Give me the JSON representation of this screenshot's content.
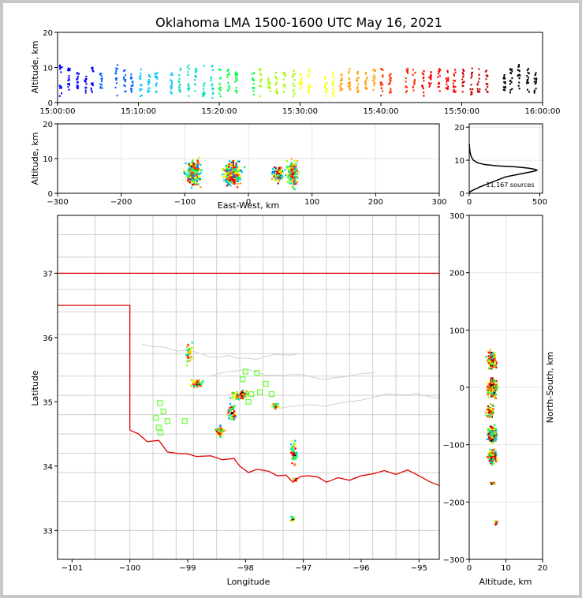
{
  "title": "Oklahoma LMA 1500-1600 UTC May 16, 2021",
  "chart_data": [
    {
      "id": "time_height",
      "type": "scatter",
      "ylabel": "Altitude, km",
      "xlim": [
        "15:00:00",
        "16:00:00"
      ],
      "ylim": [
        0,
        20
      ],
      "xticks": [
        "15:00:00",
        "15:10:00",
        "15:20:00",
        "15:30:00",
        "15:40:00",
        "15:50:00",
        "16:00:00"
      ],
      "yticks": [
        0,
        10,
        20
      ],
      "grid": false,
      "series": [
        {
          "values": [
            {
              "t": 0.3,
              "lo": 2,
              "hi": 11
            },
            {
              "t": 1.3,
              "lo": 3,
              "hi": 10
            },
            {
              "t": 2.4,
              "lo": 4,
              "hi": 9
            },
            {
              "t": 3.4,
              "lo": 3,
              "hi": 8
            },
            {
              "t": 4.2,
              "lo": 3,
              "hi": 11
            },
            {
              "t": 5.3,
              "lo": 4,
              "hi": 9
            },
            {
              "t": 7.2,
              "lo": 2,
              "hi": 11
            },
            {
              "t": 8.2,
              "lo": 3,
              "hi": 10
            },
            {
              "t": 9.1,
              "lo": 3,
              "hi": 9
            },
            {
              "t": 10.2,
              "lo": 2,
              "hi": 10
            },
            {
              "t": 11.2,
              "lo": 3,
              "hi": 9
            },
            {
              "t": 12.1,
              "lo": 3,
              "hi": 9
            },
            {
              "t": 14.0,
              "lo": 2,
              "hi": 9
            },
            {
              "t": 15.0,
              "lo": 3,
              "hi": 10
            },
            {
              "t": 16.1,
              "lo": 2,
              "hi": 11
            },
            {
              "t": 17.0,
              "lo": 3,
              "hi": 10
            },
            {
              "t": 18.0,
              "lo": 2,
              "hi": 11
            },
            {
              "t": 19.0,
              "lo": 1,
              "hi": 11
            },
            {
              "t": 20.0,
              "lo": 2,
              "hi": 10
            },
            {
              "t": 21.0,
              "lo": 3,
              "hi": 10
            },
            {
              "t": 22.0,
              "lo": 3,
              "hi": 9
            },
            {
              "t": 24.1,
              "lo": 2,
              "hi": 9
            },
            {
              "t": 25.0,
              "lo": 2,
              "hi": 10
            },
            {
              "t": 26.1,
              "lo": 3,
              "hi": 10
            },
            {
              "t": 27.0,
              "lo": 2,
              "hi": 9
            },
            {
              "t": 28.0,
              "lo": 3,
              "hi": 10
            },
            {
              "t": 29.1,
              "lo": 2,
              "hi": 10
            },
            {
              "t": 30.0,
              "lo": 3,
              "hi": 9
            },
            {
              "t": 31.0,
              "lo": 2,
              "hi": 10
            },
            {
              "t": 33.1,
              "lo": 2,
              "hi": 8
            },
            {
              "t": 34.0,
              "lo": 2,
              "hi": 9
            },
            {
              "t": 35.0,
              "lo": 3,
              "hi": 9
            },
            {
              "t": 36.0,
              "lo": 3,
              "hi": 10
            },
            {
              "t": 37.0,
              "lo": 3,
              "hi": 10
            },
            {
              "t": 38.1,
              "lo": 3,
              "hi": 9
            },
            {
              "t": 39.1,
              "lo": 3,
              "hi": 10
            },
            {
              "t": 40.0,
              "lo": 2,
              "hi": 10
            },
            {
              "t": 41.0,
              "lo": 3,
              "hi": 9
            },
            {
              "t": 43.1,
              "lo": 3,
              "hi": 10
            },
            {
              "t": 44.0,
              "lo": 3,
              "hi": 10
            },
            {
              "t": 45.1,
              "lo": 2,
              "hi": 10
            },
            {
              "t": 46.0,
              "lo": 3,
              "hi": 10
            },
            {
              "t": 47.1,
              "lo": 3,
              "hi": 10
            },
            {
              "t": 48.1,
              "lo": 2,
              "hi": 10
            },
            {
              "t": 49.0,
              "lo": 3,
              "hi": 10
            },
            {
              "t": 50.1,
              "lo": 3,
              "hi": 10
            },
            {
              "t": 51.1,
              "lo": 2,
              "hi": 10
            },
            {
              "t": 52.0,
              "lo": 3,
              "hi": 10
            },
            {
              "t": 53.0,
              "lo": 3,
              "hi": 10
            },
            {
              "t": 55.2,
              "lo": 3,
              "hi": 9
            },
            {
              "t": 56.0,
              "lo": 3,
              "hi": 10
            },
            {
              "t": 57.0,
              "lo": 4,
              "hi": 11
            },
            {
              "t": 58.1,
              "lo": 3,
              "hi": 10
            },
            {
              "t": 59.0,
              "lo": 3,
              "hi": 9
            }
          ]
        }
      ]
    },
    {
      "id": "ew_height",
      "type": "scatter",
      "xlabel": "East-West, km",
      "ylabel": "Altitude, km",
      "xlim": [
        -300,
        300
      ],
      "ylim": [
        0,
        20
      ],
      "xticks": [
        -300,
        -200,
        -100,
        0,
        100,
        200,
        300
      ],
      "yticks": [
        0,
        10,
        20
      ],
      "grid": true,
      "series": [
        {
          "values": [
            {
              "x": -88,
              "y": 6,
              "w": 18,
              "h": 10,
              "n": 260
            },
            {
              "x": -27,
              "y": 6,
              "w": 22,
              "h": 9,
              "n": 300
            },
            {
              "x": 45,
              "y": 6,
              "w": 14,
              "h": 6,
              "n": 90
            },
            {
              "x": 68,
              "y": 6,
              "w": 12,
              "h": 9,
              "n": 170
            }
          ]
        }
      ]
    },
    {
      "id": "height_histogram",
      "type": "line",
      "annotation": "11,167 sources",
      "xlim": [
        0,
        520
      ],
      "ylim": [
        0,
        21
      ],
      "xticks": [
        0,
        500
      ],
      "yticks": [
        0,
        10,
        20
      ],
      "grid": true,
      "series": [
        {
          "x": [
            1,
            5,
            30,
            80,
            140,
            200,
            260,
            320,
            380,
            440,
            470,
            480,
            460,
            420,
            330,
            200,
            110,
            60,
            30,
            15,
            8,
            4,
            2,
            1
          ],
          "y": [
            0,
            0.5,
            1,
            2,
            3,
            4,
            5,
            5.5,
            6,
            6.5,
            6.8,
            7,
            7.3,
            7.6,
            8,
            8.3,
            8.7,
            9.2,
            10,
            11,
            12,
            13,
            14,
            15
          ]
        }
      ]
    },
    {
      "id": "plan_view",
      "type": "scatter",
      "xlabel": "Longitude",
      "ylabel": "Latitude",
      "xlim": [
        -101.25,
        -94.65
      ],
      "ylim": [
        32.55,
        37.9
      ],
      "xticks": [
        -101,
        -100,
        -99,
        -98,
        -97,
        -96,
        -95
      ],
      "yticks": [
        33,
        34,
        35,
        36,
        37
      ],
      "series": [
        {
          "name": "lightning",
          "values": [
            {
              "x": -99.0,
              "y": 35.75,
              "w": 0.08,
              "h": 0.25,
              "n": 40
            },
            {
              "x": -98.85,
              "y": 35.3,
              "w": 0.15,
              "h": 0.1,
              "n": 50
            },
            {
              "x": -98.1,
              "y": 35.12,
              "w": 0.25,
              "h": 0.1,
              "n": 70
            },
            {
              "x": -98.25,
              "y": 34.85,
              "w": 0.12,
              "h": 0.2,
              "n": 40
            },
            {
              "x": -98.45,
              "y": 34.55,
              "w": 0.12,
              "h": 0.12,
              "n": 45
            },
            {
              "x": -97.5,
              "y": 34.95,
              "w": 0.1,
              "h": 0.08,
              "n": 20
            },
            {
              "x": -97.18,
              "y": 34.2,
              "w": 0.08,
              "h": 0.28,
              "n": 50
            },
            {
              "x": -97.15,
              "y": 33.8,
              "w": 0.04,
              "h": 0.05,
              "n": 8
            },
            {
              "x": -97.2,
              "y": 33.2,
              "w": 0.06,
              "h": 0.08,
              "n": 10
            }
          ]
        },
        {
          "name": "stations",
          "values": [
            {
              "x": -99.55,
              "y": 34.75
            },
            {
              "x": -99.48,
              "y": 34.98
            },
            {
              "x": -99.42,
              "y": 34.85
            },
            {
              "x": -99.5,
              "y": 34.6
            },
            {
              "x": -99.47,
              "y": 34.52
            },
            {
              "x": -99.35,
              "y": 34.7
            },
            {
              "x": -99.05,
              "y": 34.7
            },
            {
              "x": -98.0,
              "y": 35.47
            },
            {
              "x": -98.05,
              "y": 35.35
            },
            {
              "x": -97.8,
              "y": 35.45
            },
            {
              "x": -97.65,
              "y": 35.28
            },
            {
              "x": -97.75,
              "y": 35.15
            },
            {
              "x": -97.9,
              "y": 35.12
            },
            {
              "x": -97.95,
              "y": 35.0
            },
            {
              "x": -97.55,
              "y": 35.12
            }
          ]
        }
      ]
    },
    {
      "id": "ns_height",
      "type": "scatter",
      "xlabel": "Altitude, km",
      "ylabel": "North-South, km",
      "xlim": [
        0,
        20
      ],
      "ylim": [
        -300,
        300
      ],
      "xticks": [
        0,
        10,
        20
      ],
      "yticks": [
        -300,
        -200,
        -100,
        0,
        100,
        200,
        300
      ],
      "grid": true,
      "series": [
        {
          "values": [
            {
              "x": 6,
              "y": 0,
              "w": 4,
              "h": 22,
              "n": 260
            },
            {
              "x": 6,
              "y": 50,
              "w": 4,
              "h": 25,
              "n": 120
            },
            {
              "x": 6,
              "y": -80,
              "w": 4,
              "h": 20,
              "n": 180
            },
            {
              "x": 6,
              "y": -120,
              "w": 3.5,
              "h": 20,
              "n": 150
            },
            {
              "x": 5.5,
              "y": -40,
              "w": 3,
              "h": 15,
              "n": 60
            },
            {
              "x": 6,
              "y": -165,
              "w": 2,
              "h": 4,
              "n": 10
            },
            {
              "x": 7,
              "y": -235,
              "w": 2,
              "h": 10,
              "n": 8
            }
          ]
        }
      ]
    }
  ]
}
